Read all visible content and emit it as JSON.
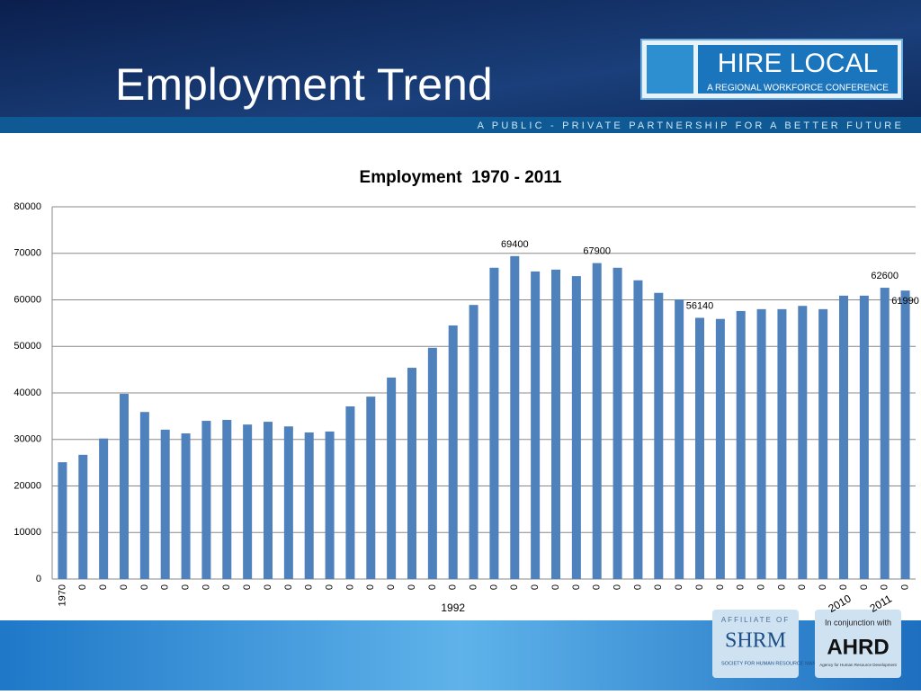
{
  "slide": {
    "title": "Employment Trend",
    "logo_title": "HIRE LOCAL",
    "logo_subtitle": "A REGIONAL WORKFORCE CONFERENCE",
    "tagline": "A PUBLIC - PRIVATE PARTNERSHIP FOR A BETTER FUTURE",
    "affiliate": "AFFILIATE OF",
    "shrm": "SHRM",
    "shrm_name": "SOCIETY FOR HUMAN RESOURCE MANAGEMENT",
    "conjunction": "In conjunction with",
    "ahrd": "AHRD",
    "ahrd_name": "Agency for Human Resource Development"
  },
  "chart_data": {
    "type": "bar",
    "title": "Employment  1970 - 2011",
    "color": "#4f81bd",
    "grid": true,
    "categories": [
      "1970",
      "0",
      "0",
      "0",
      "0",
      "0",
      "0",
      "0",
      "0",
      "0",
      "0",
      "0",
      "0",
      "0",
      "0",
      "0",
      "0",
      "0",
      "0",
      "0",
      "0",
      "0",
      "0",
      "0",
      "0",
      "0",
      "0",
      "0",
      "0",
      "0",
      "0",
      "0",
      "0",
      "0",
      "0",
      "0",
      "0",
      "0",
      "0",
      "0",
      "0",
      "0"
    ],
    "x_labels_lower": [
      null,
      null,
      null,
      null,
      null,
      null,
      null,
      null,
      null,
      null,
      null,
      null,
      null,
      null,
      null,
      null,
      null,
      null,
      null,
      "1992",
      null,
      null,
      null,
      null,
      null,
      null,
      null,
      null,
      null,
      null,
      null,
      null,
      null,
      null,
      null,
      null,
      null,
      null,
      "2010",
      null,
      "2011",
      null
    ],
    "values": [
      25100,
      26700,
      30200,
      39800,
      35900,
      32100,
      31300,
      34000,
      34200,
      33200,
      33800,
      32800,
      31500,
      31700,
      37100,
      39200,
      43300,
      45400,
      49700,
      54500,
      58900,
      66900,
      69400,
      66100,
      66500,
      65100,
      67900,
      66900,
      64200,
      61500,
      60100,
      56140,
      55900,
      57600,
      58000,
      58000,
      58700,
      58000,
      60900,
      60900,
      62600,
      61990
    ],
    "data_label_shown": [
      false,
      false,
      false,
      false,
      false,
      false,
      false,
      false,
      false,
      false,
      false,
      false,
      false,
      false,
      false,
      false,
      false,
      false,
      false,
      false,
      false,
      false,
      true,
      false,
      false,
      false,
      true,
      false,
      false,
      false,
      false,
      true,
      false,
      false,
      false,
      false,
      false,
      false,
      false,
      false,
      true,
      true
    ],
    "ylim": [
      0,
      80000
    ],
    "yticks": [
      0,
      10000,
      20000,
      30000,
      40000,
      50000,
      60000,
      70000,
      80000
    ]
  }
}
